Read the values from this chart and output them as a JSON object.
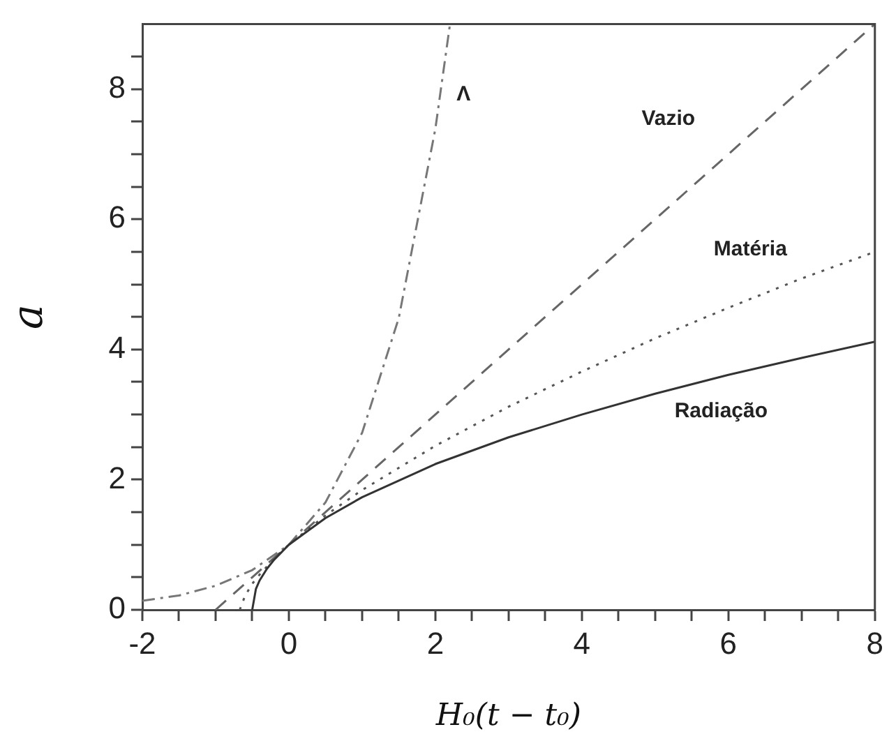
{
  "chart_data": {
    "type": "line",
    "xlabel": "H₀(t − t₀)",
    "ylabel": "a",
    "grid": false,
    "legend": false,
    "marker": "none",
    "xlim": [
      -2,
      8
    ],
    "ylim": [
      0,
      9
    ],
    "xticks": [
      -2,
      {
        "value": -1.5,
        "label": null
      },
      {
        "value": -1,
        "label": null
      },
      {
        "value": -0.5,
        "label": null
      },
      0,
      {
        "value": 0.5,
        "label": null
      },
      {
        "value": 1,
        "label": null
      },
      {
        "value": 1.5,
        "label": null
      },
      2,
      {
        "value": 2.5,
        "label": null
      },
      {
        "value": 3,
        "label": null
      },
      {
        "value": 3.5,
        "label": null
      },
      4,
      {
        "value": 4.5,
        "label": null
      },
      {
        "value": 5,
        "label": null
      },
      {
        "value": 5.5,
        "label": null
      },
      6,
      {
        "value": 6.5,
        "label": null
      },
      {
        "value": 7,
        "label": null
      },
      {
        "value": 7.5,
        "label": null
      },
      8
    ],
    "yticks": [
      0,
      {
        "value": 0.5,
        "label": null
      },
      {
        "value": 1,
        "label": null
      },
      {
        "value": 1.5,
        "label": null
      },
      2,
      {
        "value": 2.5,
        "label": null
      },
      {
        "value": 3,
        "label": null
      },
      {
        "value": 3.5,
        "label": null
      },
      4,
      {
        "value": 4.5,
        "label": null
      },
      {
        "value": 5,
        "label": null
      },
      {
        "value": 5.5,
        "label": null
      },
      6,
      {
        "value": 6.5,
        "label": null
      },
      {
        "value": 7,
        "label": null
      },
      {
        "value": 7.5,
        "label": null
      },
      8,
      {
        "value": 8.5,
        "label": null
      }
    ],
    "series": [
      {
        "color": "#333333",
        "line_style": "solid",
        "x": [
          -0.5,
          -0.45,
          -0.4,
          -0.3,
          -0.2,
          0,
          0.5,
          1,
          2,
          3,
          4,
          5,
          6,
          7,
          8
        ],
        "values": [
          0,
          0.32,
          0.45,
          0.63,
          0.77,
          1,
          1.41,
          1.73,
          2.24,
          2.65,
          3,
          3.32,
          3.61,
          3.87,
          4.12
        ]
      },
      {
        "color": "#555555",
        "line_style": "dotted",
        "x": [
          -0.67,
          -0.6,
          -0.5,
          -0.4,
          -0.2,
          0,
          0.5,
          1,
          2,
          3,
          4,
          5,
          6,
          7,
          8
        ],
        "values": [
          0,
          0.21,
          0.4,
          0.54,
          0.79,
          1,
          1.45,
          1.84,
          2.52,
          3.12,
          3.66,
          4.17,
          4.64,
          5.09,
          5.5
        ]
      },
      {
        "color": "#666666",
        "line_style": "dashed",
        "x": [
          -1,
          0,
          8
        ],
        "values": [
          0,
          1,
          9
        ]
      },
      {
        "color": "#777777",
        "line_style": "dashdot",
        "x": [
          -2,
          -1.5,
          -1,
          -0.5,
          0,
          0.5,
          1,
          1.5,
          2,
          2.2
        ],
        "values": [
          0.14,
          0.22,
          0.37,
          0.61,
          1,
          1.65,
          2.72,
          4.48,
          7.39,
          9
        ]
      }
    ],
    "annotations": [
      {
        "text": "Λ",
        "x": 2.08,
        "y": 8
      },
      {
        "text": "Vazio",
        "x": 6,
        "y": 7
      },
      {
        "text": "Matéria",
        "x": 6.3,
        "y": 4.8
      },
      {
        "text": "Radiação",
        "x": 5.9,
        "y": 3.58
      }
    ]
  }
}
